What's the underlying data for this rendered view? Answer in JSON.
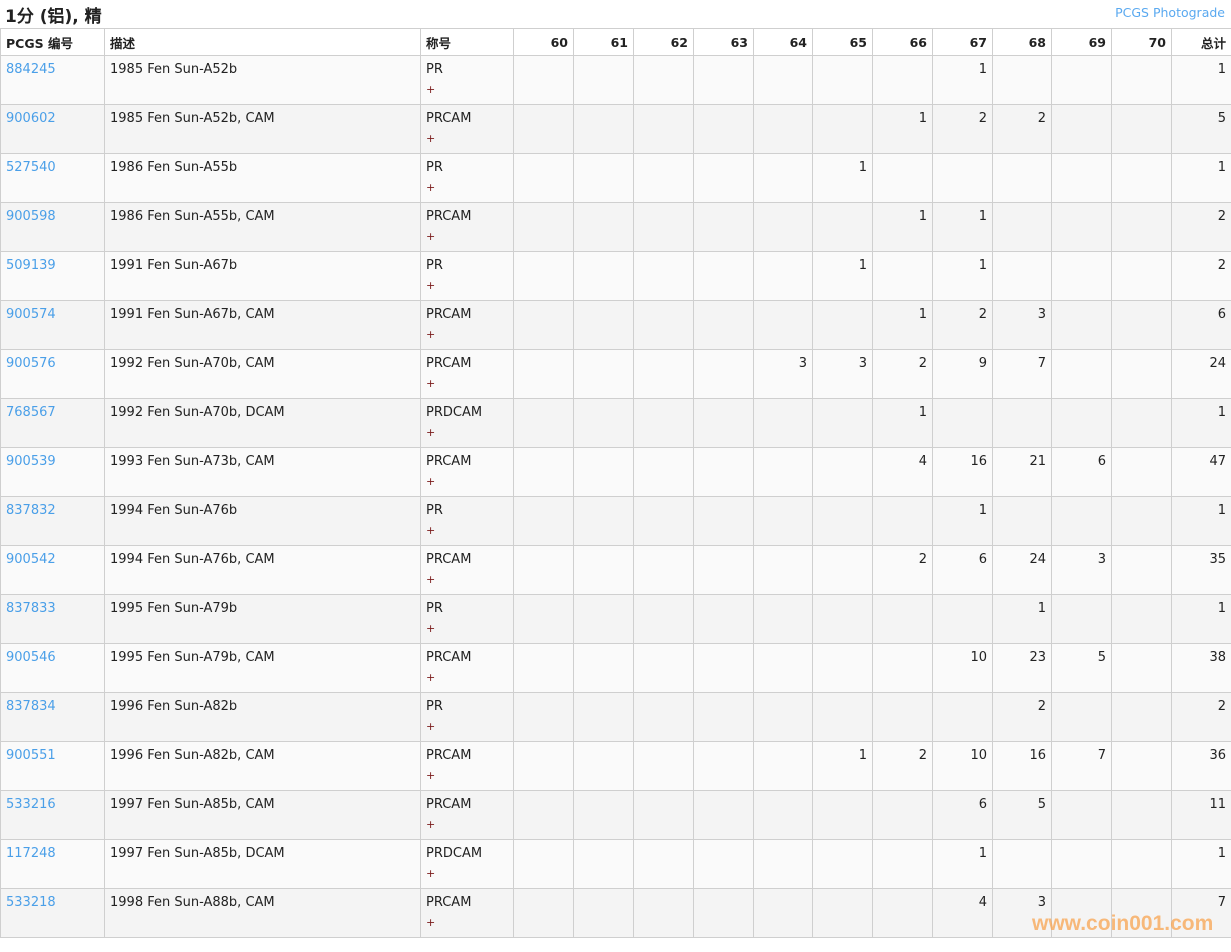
{
  "header": {
    "title": "1分 (铝), 精",
    "photograde_link": "PCGS Photograde"
  },
  "columns": {
    "pcgs": "PCGS 编号",
    "desc": "描述",
    "designation": "称号",
    "grades": [
      "60",
      "61",
      "62",
      "63",
      "64",
      "65",
      "66",
      "67",
      "68",
      "69",
      "70"
    ],
    "total": "总计"
  },
  "plus_label": "+",
  "rows": [
    {
      "pcgs": "884245",
      "desc": "1985 Fen Sun-A52b",
      "designation": "PR",
      "grades": [
        "",
        "",
        "",
        "",
        "",
        "",
        "",
        "1",
        "",
        "",
        ""
      ],
      "total": "1"
    },
    {
      "pcgs": "900602",
      "desc": "1985 Fen Sun-A52b, CAM",
      "designation": "PRCAM",
      "grades": [
        "",
        "",
        "",
        "",
        "",
        "",
        "1",
        "2",
        "2",
        "",
        ""
      ],
      "total": "5"
    },
    {
      "pcgs": "527540",
      "desc": "1986 Fen Sun-A55b",
      "designation": "PR",
      "grades": [
        "",
        "",
        "",
        "",
        "",
        "1",
        "",
        "",
        "",
        "",
        ""
      ],
      "total": "1"
    },
    {
      "pcgs": "900598",
      "desc": "1986 Fen Sun-A55b, CAM",
      "designation": "PRCAM",
      "grades": [
        "",
        "",
        "",
        "",
        "",
        "",
        "1",
        "1",
        "",
        "",
        ""
      ],
      "total": "2"
    },
    {
      "pcgs": "509139",
      "desc": "1991 Fen Sun-A67b",
      "designation": "PR",
      "grades": [
        "",
        "",
        "",
        "",
        "",
        "1",
        "",
        "1",
        "",
        "",
        ""
      ],
      "total": "2"
    },
    {
      "pcgs": "900574",
      "desc": "1991 Fen Sun-A67b, CAM",
      "designation": "PRCAM",
      "grades": [
        "",
        "",
        "",
        "",
        "",
        "",
        "1",
        "2",
        "3",
        "",
        ""
      ],
      "total": "6"
    },
    {
      "pcgs": "900576",
      "desc": "1992 Fen Sun-A70b, CAM",
      "designation": "PRCAM",
      "grades": [
        "",
        "",
        "",
        "",
        "3",
        "3",
        "2",
        "9",
        "7",
        "",
        ""
      ],
      "total": "24"
    },
    {
      "pcgs": "768567",
      "desc": "1992 Fen Sun-A70b, DCAM",
      "designation": "PRDCAM",
      "grades": [
        "",
        "",
        "",
        "",
        "",
        "",
        "1",
        "",
        "",
        "",
        ""
      ],
      "total": "1"
    },
    {
      "pcgs": "900539",
      "desc": "1993 Fen Sun-A73b, CAM",
      "designation": "PRCAM",
      "grades": [
        "",
        "",
        "",
        "",
        "",
        "",
        "4",
        "16",
        "21",
        "6",
        ""
      ],
      "total": "47"
    },
    {
      "pcgs": "837832",
      "desc": "1994 Fen Sun-A76b",
      "designation": "PR",
      "grades": [
        "",
        "",
        "",
        "",
        "",
        "",
        "",
        "1",
        "",
        "",
        ""
      ],
      "total": "1"
    },
    {
      "pcgs": "900542",
      "desc": "1994 Fen Sun-A76b, CAM",
      "designation": "PRCAM",
      "grades": [
        "",
        "",
        "",
        "",
        "",
        "",
        "2",
        "6",
        "24",
        "3",
        ""
      ],
      "total": "35"
    },
    {
      "pcgs": "837833",
      "desc": "1995 Fen Sun-A79b",
      "designation": "PR",
      "grades": [
        "",
        "",
        "",
        "",
        "",
        "",
        "",
        "",
        "1",
        "",
        ""
      ],
      "total": "1"
    },
    {
      "pcgs": "900546",
      "desc": "1995 Fen Sun-A79b, CAM",
      "designation": "PRCAM",
      "grades": [
        "",
        "",
        "",
        "",
        "",
        "",
        "",
        "10",
        "23",
        "5",
        ""
      ],
      "total": "38"
    },
    {
      "pcgs": "837834",
      "desc": "1996 Fen Sun-A82b",
      "designation": "PR",
      "grades": [
        "",
        "",
        "",
        "",
        "",
        "",
        "",
        "",
        "2",
        "",
        ""
      ],
      "total": "2"
    },
    {
      "pcgs": "900551",
      "desc": "1996 Fen Sun-A82b, CAM",
      "designation": "PRCAM",
      "grades": [
        "",
        "",
        "",
        "",
        "",
        "1",
        "2",
        "10",
        "16",
        "7",
        ""
      ],
      "total": "36"
    },
    {
      "pcgs": "533216",
      "desc": "1997 Fen Sun-A85b, CAM",
      "designation": "PRCAM",
      "grades": [
        "",
        "",
        "",
        "",
        "",
        "",
        "",
        "6",
        "5",
        "",
        ""
      ],
      "total": "11"
    },
    {
      "pcgs": "117248",
      "desc": "1997 Fen Sun-A85b, DCAM",
      "designation": "PRDCAM",
      "grades": [
        "",
        "",
        "",
        "",
        "",
        "",
        "",
        "1",
        "",
        "",
        ""
      ],
      "total": "1"
    },
    {
      "pcgs": "533218",
      "desc": "1998 Fen Sun-A88b, CAM",
      "designation": "PRCAM",
      "grades": [
        "",
        "",
        "",
        "",
        "",
        "",
        "",
        "4",
        "3",
        "",
        ""
      ],
      "total": "7"
    }
  ],
  "watermark": "www.coin001.com",
  "colors": {
    "link": "#4a9fe8",
    "watermark": "#f8a451",
    "plus": "#7a1a1a"
  }
}
